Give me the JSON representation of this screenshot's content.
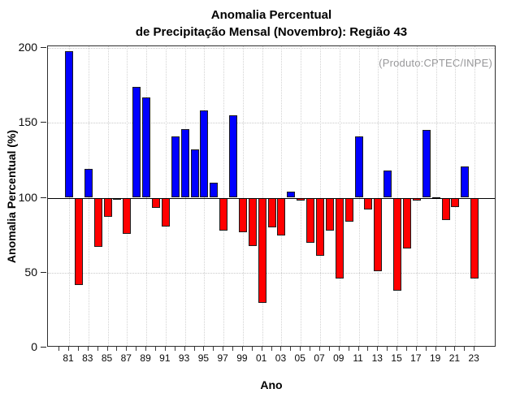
{
  "title": {
    "line1": "Anomalia Percentual",
    "line2": "de Precipitação Mensal (Novembro): Região 43"
  },
  "annotation": "(Produto:CPTEC/INPE)",
  "chart_data": {
    "type": "bar",
    "title": "Anomalia Percentual de Precipitação Mensal (Novembro): Região 43",
    "xlabel": "Ano",
    "ylabel": "Anomalia Percentual (%)",
    "ylim": [
      0,
      200
    ],
    "yticks": [
      0,
      50,
      100,
      150,
      200
    ],
    "ygrid": [
      50,
      100,
      150,
      200
    ],
    "grid": "dotted",
    "baseline": 100,
    "bar_color_above": "#0000ff",
    "bar_color_below": "#ff0000",
    "xtick_labels": [
      "81",
      "83",
      "85",
      "87",
      "89",
      "91",
      "93",
      "95",
      "97",
      "99",
      "01",
      "03",
      "05",
      "07",
      "09",
      "11",
      "13",
      "15",
      "17",
      "19",
      "21",
      "23"
    ],
    "years": [
      1981,
      1982,
      1983,
      1984,
      1985,
      1986,
      1987,
      1988,
      1989,
      1990,
      1991,
      1992,
      1993,
      1994,
      1995,
      1996,
      1997,
      1998,
      1999,
      2000,
      2001,
      2002,
      2003,
      2004,
      2005,
      2006,
      2007,
      2008,
      2009,
      2010,
      2011,
      2012,
      2013,
      2014,
      2015,
      2016,
      2017,
      2018,
      2019,
      2020,
      2021,
      2022,
      2023
    ],
    "values": [
      198,
      42,
      119,
      67,
      87,
      99,
      76,
      174,
      167,
      93,
      81,
      141,
      146,
      132,
      158,
      110,
      78,
      155,
      77,
      68,
      30,
      80,
      75,
      104,
      98,
      70,
      61,
      78,
      46,
      84,
      141,
      92,
      51,
      118,
      38,
      66,
      98,
      145,
      100,
      85,
      94,
      121,
      46
    ]
  }
}
